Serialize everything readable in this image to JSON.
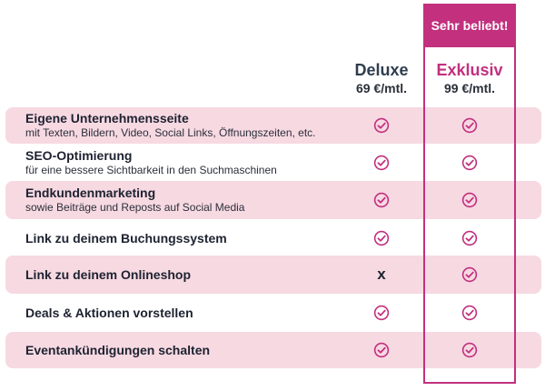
{
  "badge": "Sehr beliebt!",
  "plans": [
    {
      "name": "Deluxe",
      "price": "69 €/mtl."
    },
    {
      "name": "Exklusiv",
      "price": "99 €/mtl."
    }
  ],
  "colors": {
    "accent": "#c2307e",
    "row_shade": "#f7d9e2",
    "text_dark": "#1d2230"
  },
  "icons": {
    "included": "check-circle-icon",
    "excluded": "x-mark"
  },
  "features": [
    {
      "title": "Eigene Unternehmensseite",
      "sub": "mit Texten, Bildern, Video, Social Links, Öffnungszeiten, etc.",
      "deluxe": true,
      "exklusiv": true
    },
    {
      "title": "SEO-Optimierung",
      "sub": "für eine bessere Sichtbarkeit in den Suchmaschinen",
      "deluxe": true,
      "exklusiv": true
    },
    {
      "title": "Endkundenmarketing",
      "sub": "sowie Beiträge und Reposts auf Social Media",
      "deluxe": true,
      "exklusiv": true
    },
    {
      "title": "Link zu deinem Buchungssystem",
      "sub": "",
      "deluxe": true,
      "exklusiv": true
    },
    {
      "title": "Link zu deinem Onlineshop",
      "sub": "",
      "deluxe": false,
      "exklusiv": true,
      "excluded_mark": "x"
    },
    {
      "title": "Deals & Aktionen vorstellen",
      "sub": "",
      "deluxe": true,
      "exklusiv": true
    },
    {
      "title": "Eventankündigungen schalten",
      "sub": "",
      "deluxe": true,
      "exklusiv": true
    }
  ]
}
